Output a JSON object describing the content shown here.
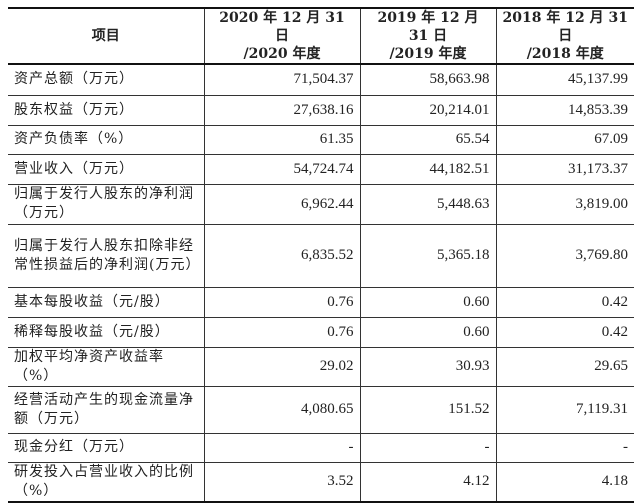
{
  "table": {
    "headers": [
      {
        "line1": "项目",
        "line2": ""
      },
      {
        "line1": "2020 年 12 月 31 日",
        "line2": "/2020 年度"
      },
      {
        "line1": "2019 年 12 月 31 日",
        "line2": "/2019 年度"
      },
      {
        "line1": "2018 年 12 月 31 日",
        "line2": "/2018 年度"
      }
    ],
    "rows": [
      {
        "label": "资产总额（万元）",
        "v2020": "71,504.37",
        "v2019": "58,663.98",
        "v2018": "45,137.99"
      },
      {
        "label": "股东权益（万元）",
        "v2020": "27,638.16",
        "v2019": "20,214.01",
        "v2018": "14,853.39"
      },
      {
        "label": "资产负债率（%）",
        "v2020": "61.35",
        "v2019": "65.54",
        "v2018": "67.09"
      },
      {
        "label": "营业收入（万元）",
        "v2020": "54,724.74",
        "v2019": "44,182.51",
        "v2018": "31,173.37"
      },
      {
        "label": "归属于发行人股东的净利润（万元）",
        "v2020": "6,962.44",
        "v2019": "5,448.63",
        "v2018": "3,819.00"
      },
      {
        "label": "归属于发行人股东扣除非经常性损益后的净利润(万元）",
        "v2020": "6,835.52",
        "v2019": "5,365.18",
        "v2018": "3,769.80"
      },
      {
        "label": "基本每股收益（元/股）",
        "v2020": "0.76",
        "v2019": "0.60",
        "v2018": "0.42"
      },
      {
        "label": "稀释每股收益（元/股）",
        "v2020": "0.76",
        "v2019": "0.60",
        "v2018": "0.42"
      },
      {
        "label": "加权平均净资产收益率（%）",
        "v2020": "29.02",
        "v2019": "30.93",
        "v2018": "29.65"
      },
      {
        "label": "经营活动产生的现金流量净额（万元）",
        "v2020": "4,080.65",
        "v2019": "151.52",
        "v2018": "7,119.31"
      },
      {
        "label": "现金分红（万元）",
        "v2020": "-",
        "v2019": "-",
        "v2018": "-"
      },
      {
        "label": "研发投入占营业收入的比例（%）",
        "v2020": "3.52",
        "v2019": "4.12",
        "v2018": "4.18"
      }
    ]
  }
}
